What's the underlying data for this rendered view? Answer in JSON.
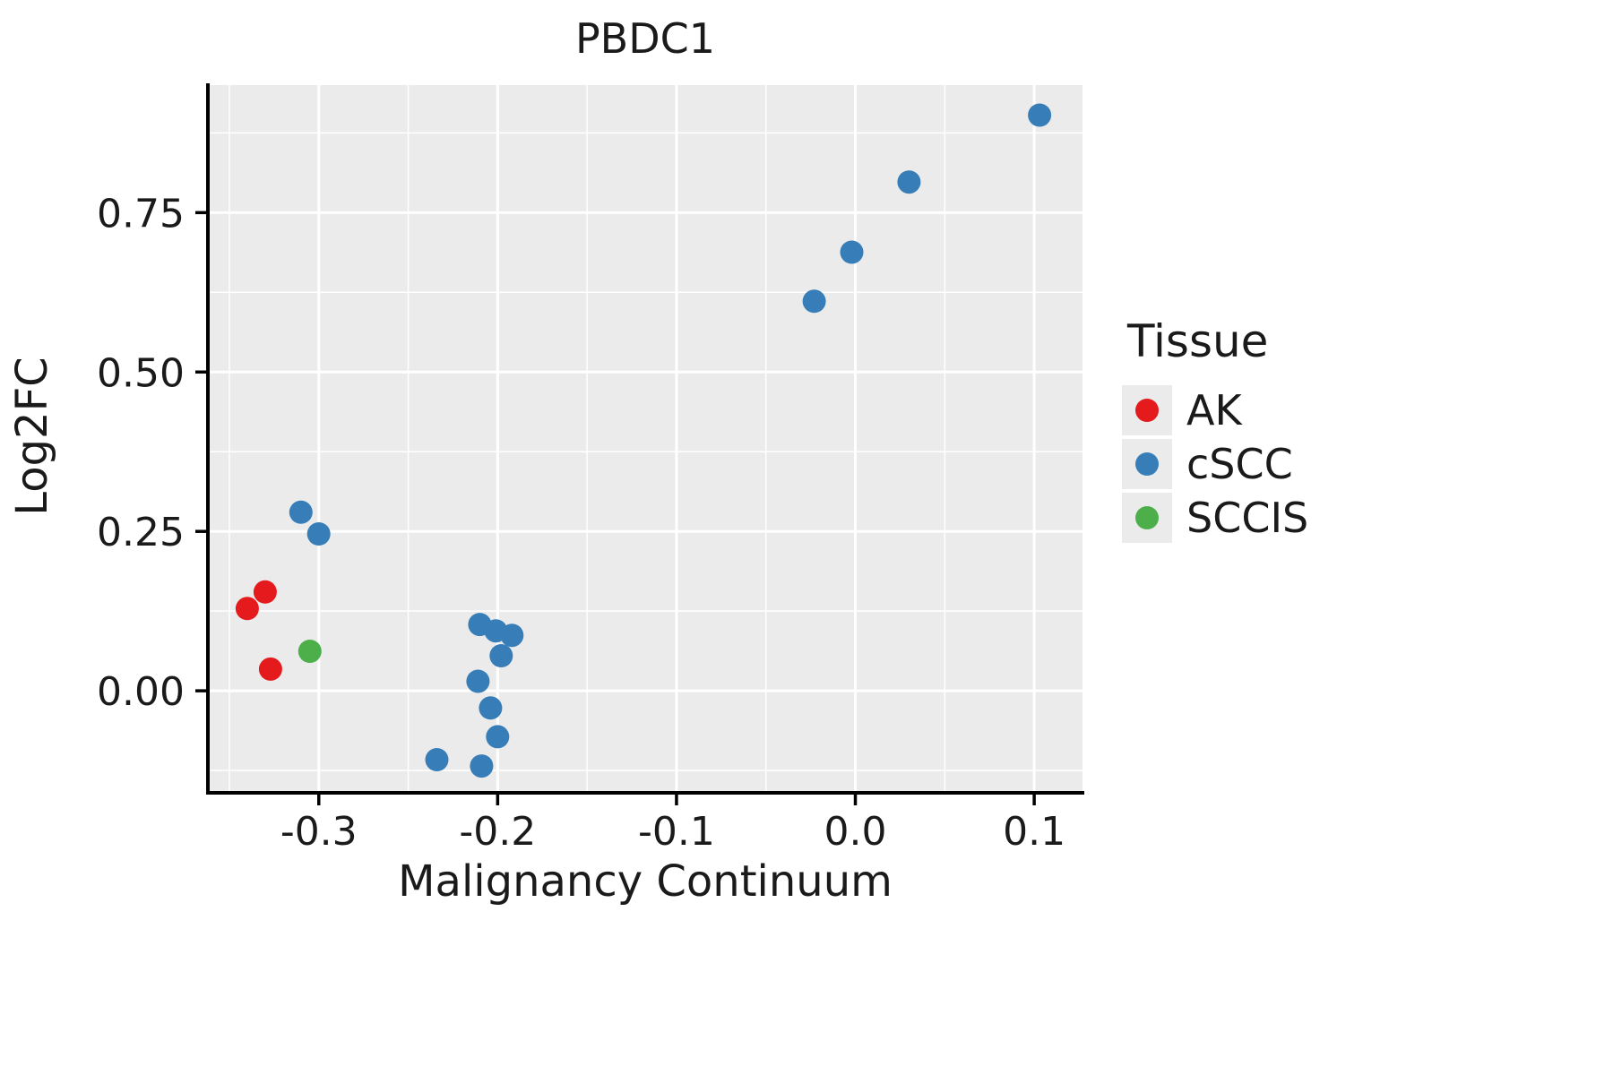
{
  "chart_data": {
    "type": "scatter",
    "title": "PBDC1",
    "xlabel": "Malignancy Continuum",
    "ylabel": "Log2FC",
    "legend_title": "Tissue",
    "legend_position": "right",
    "grid": true,
    "panel_background": "#EBEBEB",
    "grid_color": "#FFFFFF",
    "axis_color": "#000000",
    "xlim": [
      -0.362,
      0.127
    ],
    "ylim": [
      -0.16,
      0.95
    ],
    "x_ticks": [
      -0.3,
      -0.2,
      -0.1,
      0.0,
      0.1
    ],
    "x_tick_labels": [
      "-0.3",
      "-0.2",
      "-0.1",
      "0.0",
      "0.1"
    ],
    "x_minor_ticks": [
      -0.35,
      -0.25,
      -0.15,
      -0.05,
      0.05
    ],
    "y_ticks": [
      0.0,
      0.25,
      0.5,
      0.75
    ],
    "y_tick_labels": [
      "0.00",
      "0.25",
      "0.50",
      "0.75"
    ],
    "y_minor_ticks": [
      -0.125,
      0.125,
      0.375,
      0.625,
      0.875
    ],
    "series": [
      {
        "name": "AK",
        "color": "#E41A1C",
        "points": [
          [
            -0.34,
            0.129
          ],
          [
            -0.33,
            0.155
          ],
          [
            -0.327,
            0.034
          ]
        ]
      },
      {
        "name": "cSCC",
        "color": "#377EB8",
        "points": [
          [
            0.103,
            0.903
          ],
          [
            0.03,
            0.798
          ],
          [
            -0.002,
            0.688
          ],
          [
            -0.023,
            0.611
          ],
          [
            -0.31,
            0.28
          ],
          [
            -0.3,
            0.246
          ],
          [
            -0.21,
            0.104
          ],
          [
            -0.201,
            0.094
          ],
          [
            -0.192,
            0.087
          ],
          [
            -0.198,
            0.055
          ],
          [
            -0.211,
            0.015
          ],
          [
            -0.204,
            -0.027
          ],
          [
            -0.2,
            -0.072
          ],
          [
            -0.234,
            -0.108
          ],
          [
            -0.209,
            -0.118
          ]
        ]
      },
      {
        "name": "SCCIS",
        "color": "#4DAF4A",
        "points": [
          [
            -0.305,
            0.062
          ]
        ]
      }
    ]
  }
}
